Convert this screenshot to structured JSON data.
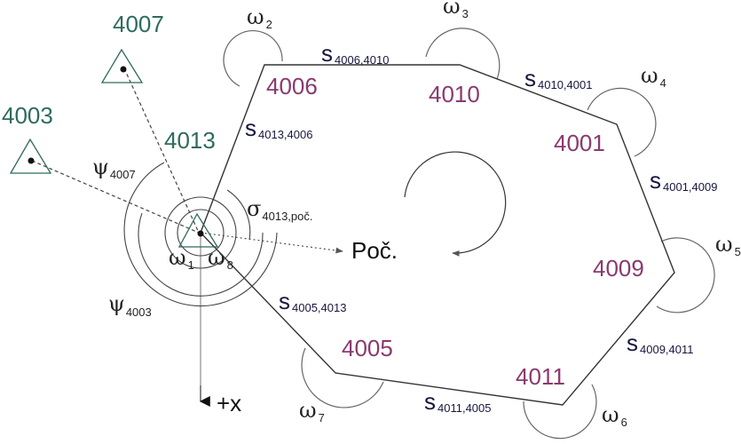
{
  "points": {
    "p4007": "4007",
    "p4003": "4003",
    "p4013": "4013",
    "p4006": "4006",
    "p4010": "4010",
    "p4001": "4001",
    "p4009": "4009",
    "p4011": "4011",
    "p4005": "4005"
  },
  "distances": {
    "s_symbol": "s",
    "s4006_4010": "4006,4010",
    "s4010_4001": "4010,4001",
    "s4013_4006": "4013,4006",
    "s4001_4009": "4001,4009",
    "s4005_4013": "4005,4013",
    "s4009_4011": "4009,4011",
    "s4011_4005": "4011,4005"
  },
  "angles": {
    "omega": "ω",
    "psi": "ψ",
    "sigma": "σ",
    "w1": "1",
    "w2": "2",
    "w3": "3",
    "w4": "4",
    "w5": "5",
    "w6": "6",
    "w7": "7",
    "w8": "8",
    "psi4007": "4007",
    "psi4003": "4003",
    "sigma_sub": "4013,poč."
  },
  "labels": {
    "start_direction": "Poč.",
    "x_axis": "+x"
  },
  "colors": {
    "known_point": "#2e6b5e",
    "new_point": "#8a3a6e",
    "distance_label": "#16163f",
    "line": "#333333"
  }
}
